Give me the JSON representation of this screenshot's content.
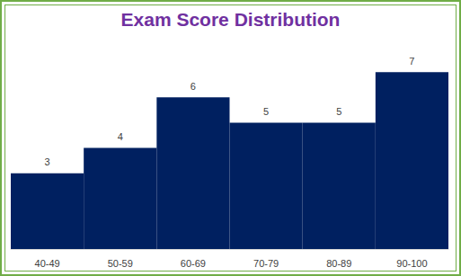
{
  "chart_data": {
    "type": "bar",
    "title": "Exam Score Distribution",
    "categories": [
      "40-49",
      "50-59",
      "60-69",
      "70-79",
      "80-89",
      "90-100"
    ],
    "values": [
      3,
      4,
      6,
      5,
      5,
      7
    ],
    "color": "#002060",
    "ylim": [
      0,
      8
    ],
    "grid": false,
    "data_labels": true,
    "tick_labels": "x"
  }
}
